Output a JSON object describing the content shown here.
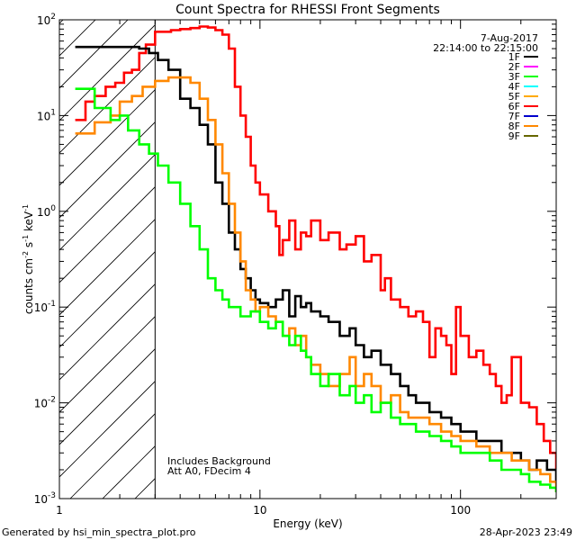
{
  "chart_data": {
    "type": "line",
    "title": "Count Spectra for RHESSI Front Segments",
    "xlabel": "Energy (keV)",
    "ylabel_parts": [
      "counts cm",
      "-2",
      " s",
      "-1",
      " keV",
      "-1"
    ],
    "xscale": "log",
    "yscale": "log",
    "xlim": [
      1,
      300
    ],
    "ylim": [
      0.001,
      100
    ],
    "x_ticks": [
      {
        "v": 10,
        "label": "10"
      },
      {
        "v": 100,
        "label": "100"
      }
    ],
    "x_label_one": "1",
    "y_ticks": [
      {
        "v": 0.001,
        "base": "10",
        "exp": "-3"
      },
      {
        "v": 0.01,
        "base": "10",
        "exp": "-2"
      },
      {
        "v": 0.1,
        "base": "10",
        "exp": "-1"
      },
      {
        "v": 1,
        "base": "10",
        "exp": "0"
      },
      {
        "v": 10,
        "base": "10",
        "exp": "1"
      },
      {
        "v": 100,
        "base": "10",
        "exp": "2"
      }
    ],
    "date": "7-Aug-2017",
    "time_range": "22:14:00 to 22:15:00",
    "shaded_region_max_kev": 3,
    "annotations": [
      "Includes Background",
      "Att A0, FDecim 4"
    ],
    "legend": [
      {
        "name": "1F",
        "color": "#000000"
      },
      {
        "name": "2F",
        "color": "#ff00ff"
      },
      {
        "name": "3F",
        "color": "#00ff00"
      },
      {
        "name": "4F",
        "color": "#00ffff"
      },
      {
        "name": "5F",
        "color": "#ffaa00"
      },
      {
        "name": "6F",
        "color": "#ff0000"
      },
      {
        "name": "7F",
        "color": "#0000cc"
      },
      {
        "name": "8F",
        "color": "#ff8800"
      },
      {
        "name": "9F",
        "color": "#666600"
      }
    ],
    "series": [
      {
        "name": "6F",
        "color": "#ff0000",
        "x": [
          1.2,
          1.35,
          1.5,
          1.7,
          1.9,
          2.1,
          2.3,
          2.5,
          2.7,
          3.0,
          3.3,
          3.6,
          4.0,
          4.5,
          5.0,
          5.5,
          6.0,
          6.5,
          7.0,
          7.5,
          8.0,
          8.5,
          9.0,
          9.5,
          10,
          11,
          12,
          12.5,
          13,
          14,
          15,
          16,
          17,
          18,
          20,
          22,
          25,
          27,
          30,
          33,
          36,
          40,
          42,
          45,
          50,
          55,
          60,
          65,
          70,
          75,
          80,
          85,
          90,
          95,
          100,
          110,
          120,
          130,
          140,
          150,
          160,
          170,
          180,
          200,
          220,
          240,
          260,
          280,
          300
        ],
        "y": [
          9,
          14,
          16,
          20,
          22,
          28,
          30,
          45,
          55,
          75,
          75,
          78,
          80,
          82,
          85,
          83,
          78,
          70,
          50,
          20,
          10,
          6,
          3,
          2,
          1.5,
          1.0,
          0.7,
          0.35,
          0.5,
          0.8,
          0.4,
          0.6,
          0.55,
          0.8,
          0.5,
          0.6,
          0.4,
          0.45,
          0.55,
          0.3,
          0.35,
          0.15,
          0.2,
          0.12,
          0.1,
          0.08,
          0.09,
          0.07,
          0.03,
          0.06,
          0.05,
          0.04,
          0.02,
          0.1,
          0.05,
          0.03,
          0.035,
          0.025,
          0.02,
          0.015,
          0.01,
          0.012,
          0.03,
          0.01,
          0.009,
          0.006,
          0.004,
          0.003,
          0.002
        ]
      },
      {
        "name": "1F",
        "color": "#000000",
        "x": [
          1.2,
          1.5,
          2.0,
          2.5,
          2.8,
          3.1,
          3.5,
          4.0,
          4.5,
          5.0,
          5.5,
          6.0,
          6.5,
          7.0,
          7.5,
          8.0,
          8.5,
          9.0,
          9.5,
          10,
          11,
          12,
          13,
          14,
          15,
          16,
          17,
          18,
          20,
          22,
          25,
          28,
          30,
          33,
          36,
          40,
          45,
          50,
          55,
          60,
          70,
          80,
          90,
          100,
          120,
          140,
          160,
          180,
          200,
          220,
          240,
          270,
          300
        ],
        "y": [
          52,
          52,
          52,
          50,
          45,
          38,
          30,
          15,
          12,
          8,
          5,
          2,
          1.2,
          0.6,
          0.4,
          0.25,
          0.2,
          0.15,
          0.12,
          0.11,
          0.1,
          0.12,
          0.15,
          0.08,
          0.13,
          0.1,
          0.11,
          0.09,
          0.08,
          0.07,
          0.05,
          0.06,
          0.04,
          0.03,
          0.035,
          0.025,
          0.02,
          0.015,
          0.012,
          0.01,
          0.008,
          0.007,
          0.006,
          0.005,
          0.004,
          0.004,
          0.003,
          0.003,
          0.0025,
          0.002,
          0.0025,
          0.002,
          0.0015
        ]
      },
      {
        "name": "8F",
        "color": "#ff8800",
        "x": [
          1.2,
          1.5,
          1.8,
          2.0,
          2.3,
          2.6,
          3.0,
          3.5,
          4.0,
          4.5,
          5.0,
          5.5,
          6.0,
          6.5,
          7.0,
          7.5,
          8.0,
          8.5,
          9.0,
          9.5,
          10,
          11,
          12,
          13,
          14,
          15,
          16,
          17,
          18,
          20,
          22,
          25,
          28,
          30,
          33,
          36,
          40,
          45,
          50,
          55,
          60,
          70,
          80,
          90,
          100,
          120,
          140,
          160,
          180,
          200,
          220,
          250,
          280,
          300
        ],
        "y": [
          6.5,
          8.5,
          10,
          14,
          16,
          20,
          23,
          25,
          25,
          22,
          15,
          9,
          5,
          2.5,
          1.2,
          0.6,
          0.3,
          0.15,
          0.12,
          0.09,
          0.1,
          0.08,
          0.07,
          0.05,
          0.06,
          0.04,
          0.05,
          0.03,
          0.025,
          0.02,
          0.015,
          0.02,
          0.03,
          0.015,
          0.02,
          0.015,
          0.01,
          0.012,
          0.008,
          0.007,
          0.007,
          0.006,
          0.005,
          0.0045,
          0.004,
          0.0035,
          0.003,
          0.003,
          0.0025,
          0.0025,
          0.002,
          0.0018,
          0.0015,
          0.0012
        ]
      },
      {
        "name": "3F",
        "color": "#00ff00",
        "x": [
          1.2,
          1.5,
          1.8,
          2.0,
          2.2,
          2.5,
          2.8,
          3.1,
          3.5,
          4.0,
          4.5,
          5.0,
          5.5,
          6.0,
          6.5,
          7.0,
          8.0,
          9.0,
          10,
          11,
          12,
          13,
          14,
          15,
          16,
          17,
          18,
          20,
          22,
          25,
          28,
          30,
          33,
          36,
          40,
          45,
          50,
          55,
          60,
          70,
          80,
          90,
          100,
          120,
          140,
          160,
          180,
          200,
          220,
          250,
          280,
          300
        ],
        "y": [
          19,
          12,
          9,
          10,
          7,
          5,
          4,
          3,
          2,
          1.2,
          0.7,
          0.4,
          0.2,
          0.15,
          0.12,
          0.1,
          0.08,
          0.09,
          0.07,
          0.06,
          0.07,
          0.05,
          0.04,
          0.05,
          0.035,
          0.03,
          0.02,
          0.015,
          0.02,
          0.012,
          0.015,
          0.01,
          0.012,
          0.008,
          0.01,
          0.007,
          0.006,
          0.006,
          0.005,
          0.0045,
          0.004,
          0.0035,
          0.003,
          0.003,
          0.0025,
          0.002,
          0.002,
          0.0018,
          0.0015,
          0.0014,
          0.0013,
          0.0012
        ]
      }
    ]
  },
  "footer": {
    "generated_by": "Generated by hsi_min_spectra_plot.pro",
    "timestamp": "28-Apr-2023 23:49"
  }
}
